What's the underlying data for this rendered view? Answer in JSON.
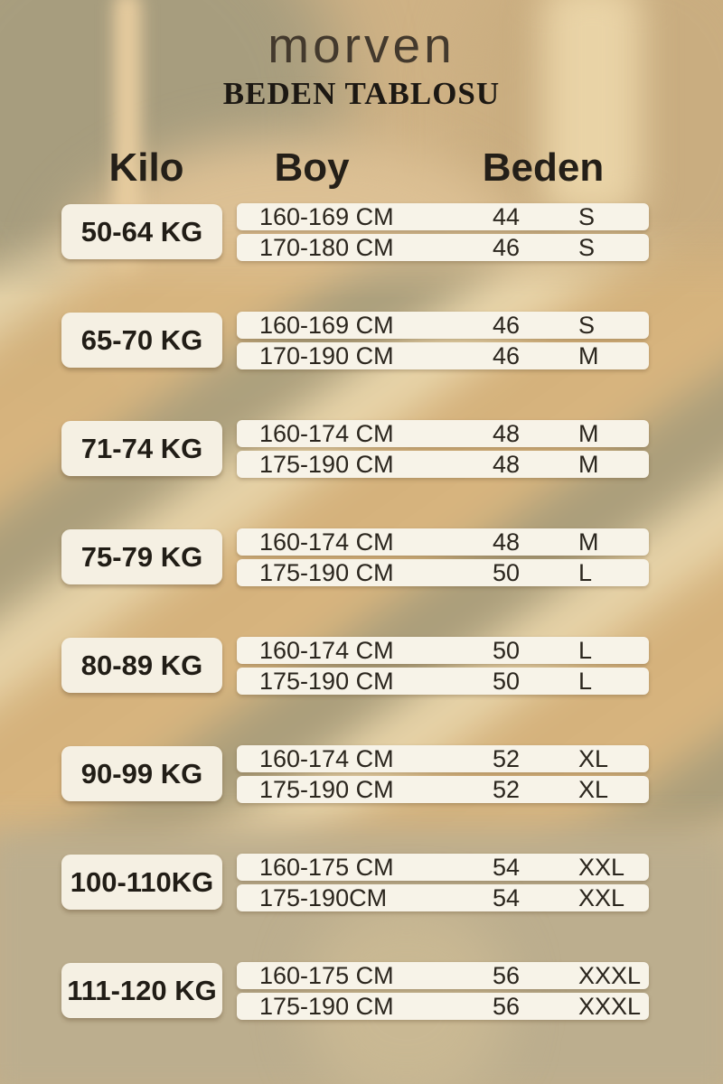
{
  "brand": "morven",
  "title": "BEDEN TABLOSU",
  "columns": {
    "kilo": "Kilo",
    "boy": "Boy",
    "beden": "Beden"
  },
  "groups": [
    {
      "kilo": "50-64 KG",
      "rows": [
        {
          "boy": "160-169 CM",
          "size": "44",
          "beden": "S"
        },
        {
          "boy": "170-180 CM",
          "size": "46",
          "beden": "S"
        }
      ]
    },
    {
      "kilo": "65-70 KG",
      "rows": [
        {
          "boy": "160-169 CM",
          "size": "46",
          "beden": "S"
        },
        {
          "boy": "170-190 CM",
          "size": "46",
          "beden": "M"
        }
      ]
    },
    {
      "kilo": "71-74 KG",
      "rows": [
        {
          "boy": "160-174 CM",
          "size": "48",
          "beden": "M"
        },
        {
          "boy": "175-190 CM",
          "size": "48",
          "beden": "M"
        }
      ]
    },
    {
      "kilo": "75-79 KG",
      "rows": [
        {
          "boy": "160-174 CM",
          "size": "48",
          "beden": "M"
        },
        {
          "boy": "175-190 CM",
          "size": "50",
          "beden": "L"
        }
      ]
    },
    {
      "kilo": "80-89 KG",
      "rows": [
        {
          "boy": "160-174 CM",
          "size": "50",
          "beden": "L"
        },
        {
          "boy": "175-190 CM",
          "size": "50",
          "beden": "L"
        }
      ]
    },
    {
      "kilo": "90-99 KG",
      "rows": [
        {
          "boy": "160-174 CM",
          "size": "52",
          "beden": "XL"
        },
        {
          "boy": "175-190 CM",
          "size": "52",
          "beden": "XL"
        }
      ]
    },
    {
      "kilo": "100-110KG",
      "rows": [
        {
          "boy": "160-175 CM",
          "size": "54",
          "beden": "XXL"
        },
        {
          "boy": "175-190CM",
          "size": "54",
          "beden": "XXL"
        }
      ]
    },
    {
      "kilo": "111-120 KG",
      "rows": [
        {
          "boy": "160-175 CM",
          "size": "56",
          "beden": "XXXL"
        },
        {
          "boy": "175-190 CM",
          "size": "56",
          "beden": "XXXL"
        }
      ]
    }
  ],
  "colors": {
    "card_background": "#f7f3e8",
    "label_box_background": "#f5f0e3",
    "text": "#2a251d",
    "heading_text": "#241f18",
    "bg_tan": "#d6b37c",
    "bg_khaki": "#a89d7b",
    "bg_cream": "#ead7ac",
    "bg_bottom": "#bcae8e"
  }
}
